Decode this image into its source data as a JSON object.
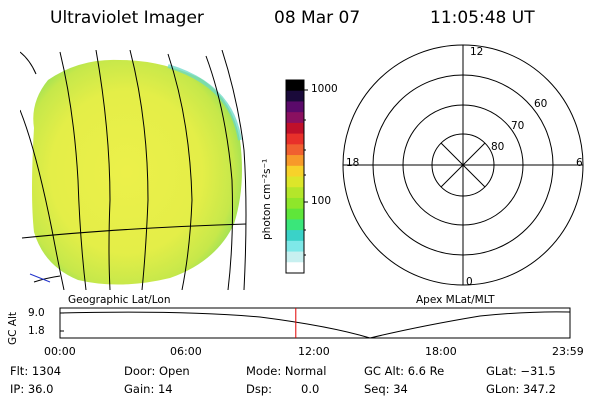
{
  "header": {
    "instrument": "Ultraviolet Imager",
    "date": "08 Mar 07",
    "time": "11:05:48 UT"
  },
  "colorbar": {
    "unit_label": "photon cm⁻²s⁻¹",
    "tick_labels": [
      "1000",
      "100"
    ],
    "colors": [
      "#000000",
      "#1a0a3a",
      "#5a0a6a",
      "#8a1060",
      "#c0102a",
      "#e8302a",
      "#f06030",
      "#f79a2a",
      "#f7d22a",
      "#dce62a",
      "#b4e62a",
      "#8fe62a",
      "#5fe63a",
      "#3ae67a",
      "#3ad2c8",
      "#7ee8e8",
      "#c8f0f0",
      "#ffffff"
    ]
  },
  "left_panel": {
    "label": "Geographic Lat/Lon"
  },
  "right_panel": {
    "label": "Apex MLat/MLT",
    "mlt_labels": {
      "top": "12",
      "left": "18",
      "right": "6",
      "bottom": "0"
    },
    "lat_labels": [
      "60",
      "70",
      "80"
    ]
  },
  "timeline": {
    "ylabel": "GC Alt",
    "y_ticks": [
      "9.0",
      "1.8"
    ],
    "x_ticks": [
      "00:00",
      "06:00",
      "12:00",
      "18:00",
      "23:59"
    ],
    "current_time_fraction": 0.4623,
    "line_color": "#000000",
    "marker_color": "#e00000"
  },
  "footer": {
    "flt": "Flt: 1304",
    "ip": "IP: 36.0",
    "door": "Door: Open",
    "gain": "Gain: 14",
    "mode": "Mode: Normal",
    "dsp": "Dsp:",
    "dsp_value": "0.0",
    "gc_alt": "GC Alt: 6.6 Re",
    "seq": "Seq: 34",
    "glat": "GLat: −31.5",
    "glon": "GLon: 347.2"
  }
}
